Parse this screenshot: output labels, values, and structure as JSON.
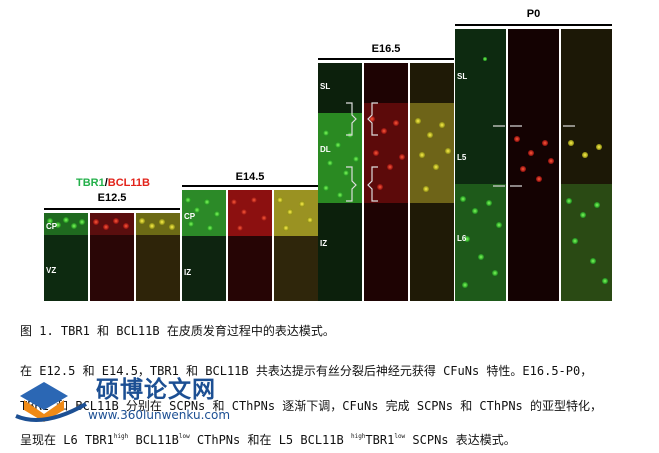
{
  "figure": {
    "legend": {
      "green": "TBR1",
      "separator": "/",
      "red": "BCL11B"
    },
    "stages": [
      {
        "label": "E12.5",
        "zones": [
          "CP",
          "VZ"
        ]
      },
      {
        "label": "E14.5",
        "zones": [
          "CP",
          "IZ"
        ]
      },
      {
        "label": "E16.5",
        "zones": [
          "SL",
          "DL",
          "IZ"
        ]
      },
      {
        "label": "P0",
        "zones": [
          "SL",
          "L5",
          "L6"
        ]
      }
    ],
    "colors": {
      "green": "#2fd12f",
      "red": "#e01818",
      "merge": "#d6cf2a",
      "bg": "#0b0b08"
    }
  },
  "caption": "图 1. TBR1 和 BCL11B 在皮质发育过程中的表达模式。",
  "paragraph": {
    "line1": "在 E12.5 和 E14.5，TBR1 和 BCL11B 共表达提示有丝分裂后神经元获得 CFuNs 特性。E16.5-P0，",
    "line2": "TBR1 和 BCL11B 分别在 SCPNs 和 CThPNs 逐渐下调，CFuNs 完成 SCPNs 和 CThPNs 的亚型特化，",
    "line3_a": "呈现在 L6 TBR1",
    "sup_high1": "high",
    "line3_b": " BCL11B",
    "sup_low1": "low",
    "line3_c": " CThPNs 和在 L5 BCL11B ",
    "sup_high2": "high",
    "line3_d": "TBR1",
    "sup_low2": "low",
    "line3_e": " SCPNs 表达模式。"
  },
  "watermark": {
    "title": "硕博论文网",
    "url": "www.360lunwenku.com"
  }
}
